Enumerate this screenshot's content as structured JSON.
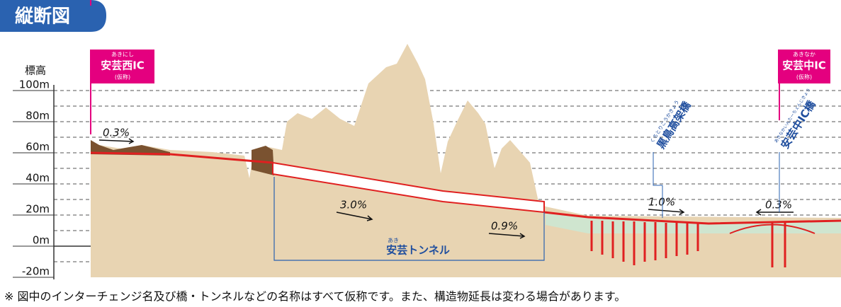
{
  "header": {
    "title": "縦断図"
  },
  "axis": {
    "label": "標高",
    "ticks": [
      "100m",
      "80m",
      "60m",
      "40m",
      "20m",
      "0m",
      "-20m"
    ]
  },
  "interchanges": [
    {
      "ruby": "あきにし",
      "name": "安芸西IC",
      "note": "(仮称)"
    },
    {
      "ruby": "あきなか",
      "name": "安芸中IC",
      "note": "(仮称)"
    }
  ],
  "gradients": [
    "0.3%",
    "3.0%",
    "0.9%",
    "1.0%",
    "0.3%"
  ],
  "tunnel": {
    "ruby": "あき",
    "name": "安芸トンネル"
  },
  "bridges": [
    {
      "ruby": "くろとりこうかきょう",
      "name": "黒鳥高架橋"
    },
    {
      "ruby": "あきなかいんたーちぇんじきょう",
      "name": "安芸中IC橋"
    }
  ],
  "footnote": "※ 図中のインターチェンジ名及び橋・トンネルなどの名称はすべて仮称です。また、構造物延長は変わる場合があります。"
}
